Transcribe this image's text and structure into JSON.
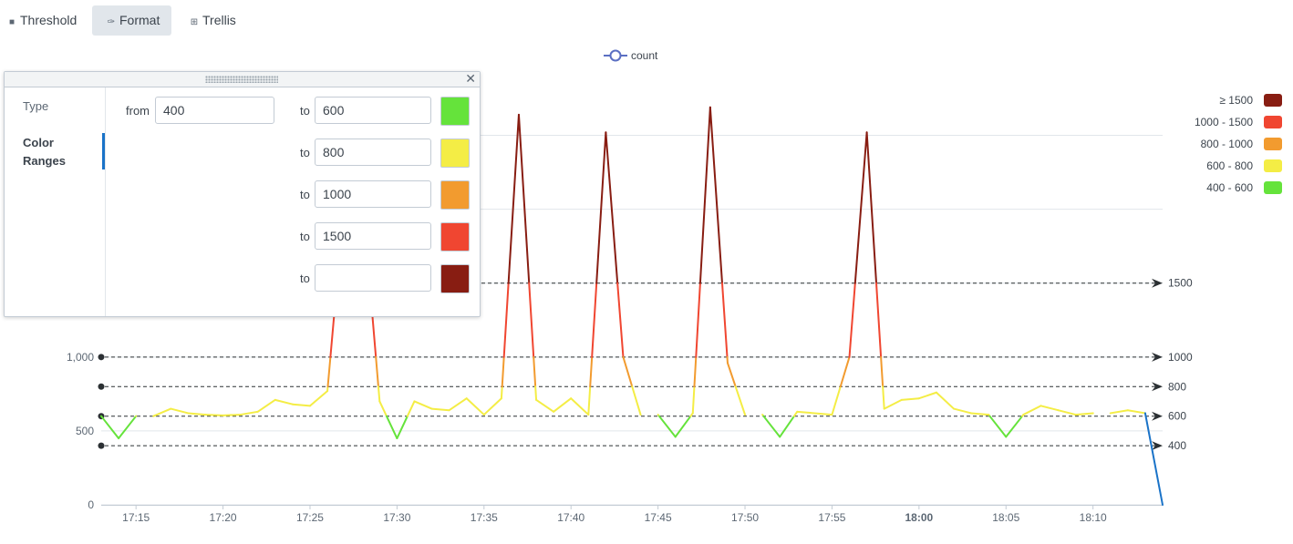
{
  "toolbar": {
    "threshold_label": "Threshold",
    "format_label": "Format",
    "trellis_label": "Trellis"
  },
  "legend": {
    "series_name": "count",
    "series_color": "#5b6fc3"
  },
  "panel": {
    "nav_type": "Type",
    "nav_color_ranges_line1": "Color",
    "nav_color_ranges_line2": "Ranges",
    "from_label": "from",
    "to_label": "to",
    "from_value": "400",
    "ranges": [
      {
        "to": "600",
        "color": "#65e33b"
      },
      {
        "to": "800",
        "color": "#f4ed45"
      },
      {
        "to": "1000",
        "color": "#f29b2f"
      },
      {
        "to": "1500",
        "color": "#f04631"
      },
      {
        "to": "",
        "color": "#881d12"
      }
    ]
  },
  "range_legend": [
    {
      "label": "≥ 1500",
      "color": "#881d12"
    },
    {
      "label": "1000 - 1500",
      "color": "#f04631"
    },
    {
      "label": "800 - 1000",
      "color": "#f29b2f"
    },
    {
      "label": "600 - 800",
      "color": "#f4ed45"
    },
    {
      "label": "400 - 600",
      "color": "#65e33b"
    }
  ],
  "chart_data": {
    "type": "line",
    "series": [
      {
        "name": "count"
      }
    ],
    "x_start_label": "17:13",
    "x_step_minutes": 1,
    "y_ticks": [
      "0",
      "500",
      "1,000"
    ],
    "ylim": [
      0,
      2750
    ],
    "x_ticks": [
      "17:15",
      "17:20",
      "17:25",
      "17:30",
      "17:35",
      "17:40",
      "17:45",
      "17:50",
      "17:55",
      "18:00",
      "18:05",
      "18:10"
    ],
    "bold_tick": "18:00",
    "grid": true,
    "values": [
      600,
      450,
      600,
      600,
      650,
      620,
      610,
      605,
      610,
      630,
      710,
      680,
      670,
      770,
      2100,
      2100,
      700,
      450,
      700,
      650,
      640,
      720,
      610,
      720,
      2640,
      710,
      630,
      720,
      610,
      2520,
      1000,
      610,
      610,
      460,
      620,
      2690,
      960,
      610,
      610,
      460,
      630,
      620,
      610,
      1000,
      2520,
      650,
      710,
      720,
      760,
      650,
      620,
      610,
      460,
      610,
      670,
      640,
      610,
      620,
      620,
      640,
      620,
      0
    ],
    "last_segment_color": "#1a73c8",
    "thresholds": [
      {
        "value": 1500,
        "label": "1500"
      },
      {
        "value": 1000,
        "label": "1000"
      },
      {
        "value": 800,
        "label": "800"
      },
      {
        "value": 600,
        "label": "600"
      },
      {
        "value": 400,
        "label": "400"
      }
    ]
  }
}
